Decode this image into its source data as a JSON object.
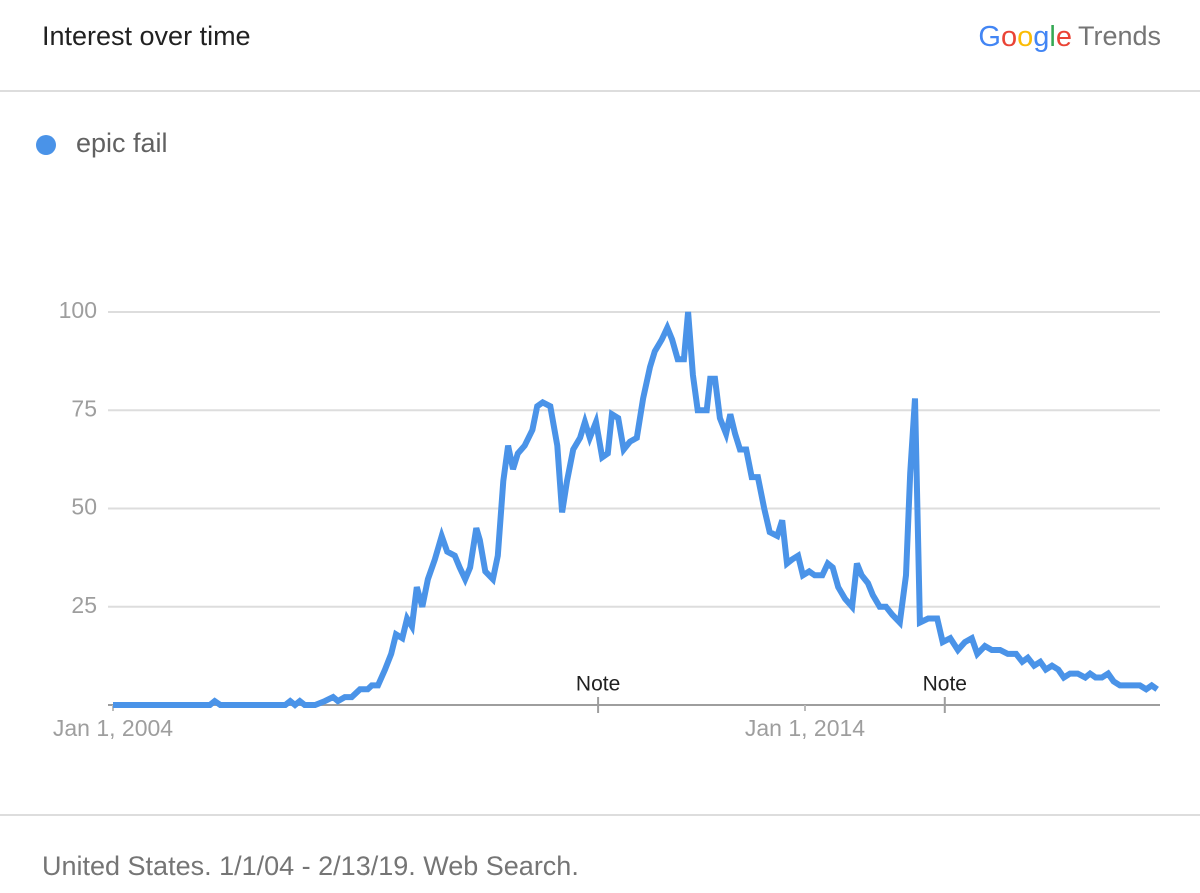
{
  "header": {
    "title": "Interest over time",
    "logo": {
      "brand": "Google",
      "product": "Trends"
    }
  },
  "chart_data": {
    "type": "line",
    "x": [
      2004.0,
      2005.4,
      2005.47,
      2005.55,
      2006.49,
      2006.56,
      2006.63,
      2006.7,
      2006.77,
      2006.92,
      2007.06,
      2007.18,
      2007.25,
      2007.35,
      2007.45,
      2007.57,
      2007.68,
      2007.74,
      2007.83,
      2007.93,
      2008.02,
      2008.09,
      2008.18,
      2008.25,
      2008.32,
      2008.39,
      2008.47,
      2008.55,
      2008.65,
      2008.75,
      2008.83,
      2008.94,
      2009.01,
      2009.09,
      2009.16,
      2009.25,
      2009.3,
      2009.38,
      2009.49,
      2009.56,
      2009.64,
      2009.71,
      2009.78,
      2009.85,
      2009.95,
      2010.06,
      2010.13,
      2010.21,
      2010.32,
      2010.42,
      2010.49,
      2010.56,
      2010.65,
      2010.75,
      2010.82,
      2010.89,
      2010.98,
      2011.07,
      2011.15,
      2011.21,
      2011.3,
      2011.38,
      2011.47,
      2011.57,
      2011.66,
      2011.76,
      2011.83,
      2011.93,
      2012.01,
      2012.08,
      2012.16,
      2012.25,
      2012.31,
      2012.38,
      2012.45,
      2012.58,
      2012.63,
      2012.7,
      2012.77,
      2012.86,
      2012.92,
      2012.99,
      2013.06,
      2013.15,
      2013.23,
      2013.32,
      2013.41,
      2013.49,
      2013.6,
      2013.67,
      2013.74,
      2013.81,
      2013.9,
      2013.97,
      2014.06,
      2014.14,
      2014.25,
      2014.33,
      2014.4,
      2014.48,
      2014.58,
      2014.68,
      2014.75,
      2014.82,
      2014.91,
      2014.98,
      2015.08,
      2015.17,
      2015.26,
      2015.37,
      2015.46,
      2015.52,
      2015.59,
      2015.66,
      2015.78,
      2015.91,
      2015.99,
      2016.1,
      2016.21,
      2016.31,
      2016.41,
      2016.49,
      2016.6,
      2016.7,
      2016.82,
      2016.93,
      2017.05,
      2017.14,
      2017.22,
      2017.31,
      2017.4,
      2017.48,
      2017.57,
      2017.66,
      2017.74,
      2017.83,
      2017.94,
      2018.05,
      2018.12,
      2018.2,
      2018.29,
      2018.38,
      2018.46,
      2018.55,
      2018.7,
      2018.84,
      2018.93,
      2019.01,
      2019.09
    ],
    "series": [
      {
        "name": "epic fail",
        "color": "#4a93e8",
        "values": [
          0,
          0,
          1,
          0,
          0,
          1,
          0,
          1,
          0,
          0,
          1,
          2,
          1,
          2,
          2,
          4,
          4,
          5,
          5,
          9,
          13,
          18,
          17,
          22,
          20,
          30,
          25,
          32,
          37,
          43,
          39,
          38,
          35,
          32,
          35,
          45,
          42,
          34,
          32,
          38,
          57,
          66,
          60,
          64,
          66,
          70,
          76,
          77,
          76,
          66,
          49,
          57,
          65,
          68,
          72,
          68,
          72,
          63,
          64,
          74,
          73,
          65,
          67,
          68,
          78,
          86,
          90,
          93,
          96,
          93,
          88,
          88,
          100,
          84,
          75,
          75,
          83,
          83,
          73,
          69,
          74,
          69,
          65,
          65,
          58,
          58,
          50,
          44,
          43,
          47,
          36,
          37,
          38,
          33,
          34,
          33,
          33,
          36,
          35,
          30,
          27,
          25,
          36,
          33,
          31,
          28,
          25,
          25,
          23,
          21,
          33,
          59,
          78,
          21,
          22,
          22,
          16,
          17,
          14,
          16,
          17,
          13,
          15,
          14,
          14,
          13,
          13,
          11,
          12,
          10,
          11,
          9,
          10,
          9,
          7,
          8,
          8,
          7,
          8,
          7,
          7,
          8,
          6,
          5,
          5,
          5,
          4,
          5,
          4
        ]
      }
    ],
    "xlim": [
      2004,
      2019.13
    ],
    "xticks": [
      {
        "value": 2004,
        "label": "Jan 1, 2004"
      },
      {
        "value": 2014,
        "label": "Jan 1, 2014"
      }
    ],
    "ylim": [
      0,
      100
    ],
    "yticks": [
      25,
      50,
      75,
      100
    ],
    "grid": true,
    "annotations": [
      {
        "text": "Note",
        "x": 2011.01
      },
      {
        "text": "Note",
        "x": 2016.02
      }
    ]
  },
  "footer": {
    "text": "United States. 1/1/04 - 2/13/19. Web Search."
  }
}
